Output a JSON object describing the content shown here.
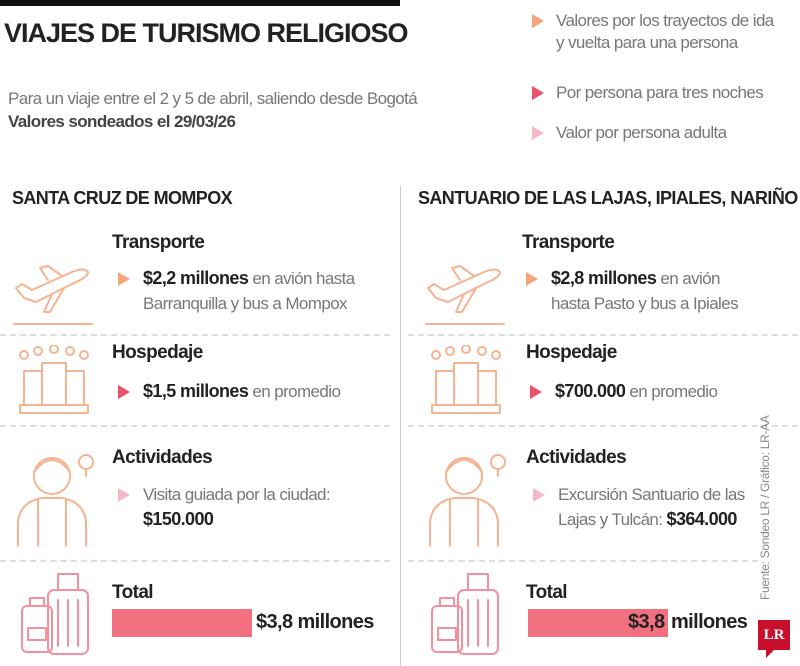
{
  "header": {
    "title": "VIAJES DE TURISMO RELIGIOSO",
    "subtitle": "Para un viaje entre el 2 y 5 de abril, saliendo desde Bogotá",
    "survey_date": "Valores sondeados el 29/03/26"
  },
  "legend": [
    {
      "label_1": "Valores por los trayectos de ida",
      "label_2": "y vuelta para una persona",
      "color": "#f4a67a"
    },
    {
      "label": "Por persona para tres noches",
      "color": "#e8506a"
    },
    {
      "label": "Valor por persona adulta",
      "color": "#f7b8c6"
    }
  ],
  "destinations": [
    {
      "name": "SANTA CRUZ DE MOMPOX",
      "transport": {
        "title": "Transporte",
        "amount": "$2,2 millones",
        "text_1": "en avión hasta",
        "text_2": "Barranquilla y bus a Mompox"
      },
      "lodging": {
        "title": "Hospedaje",
        "amount": "$1,5 millones",
        "text": "en promedio"
      },
      "activities": {
        "title": "Actividades",
        "text": "Visita guiada por la ciudad:",
        "amount": "$150.000"
      },
      "total": {
        "title": "Total",
        "amount": "$3,8 millones",
        "value_millions": 3.8
      }
    },
    {
      "name": "SANTUARIO DE LAS LAJAS, IPIALES, NARIÑO",
      "transport": {
        "title": "Transporte",
        "amount": "$2,8 millones",
        "text_1": "en avión",
        "text_2": "hasta Pasto y bus a Ipiales"
      },
      "lodging": {
        "title": "Hospedaje",
        "amount": "$700.000",
        "text": "en promedio"
      },
      "activities": {
        "title": "Actividades",
        "text": "Excursión Santuario de las",
        "text_2": "Lajas y Tulcán:",
        "amount": "$364.000"
      },
      "total": {
        "title": "Total",
        "amount": "$3,8",
        "unit": "millones",
        "value_millions": 3.8
      }
    }
  ],
  "footer": {
    "source": "Fuente: Sondeo LR / Gráfico: LR-AA",
    "logo": "LR"
  }
}
